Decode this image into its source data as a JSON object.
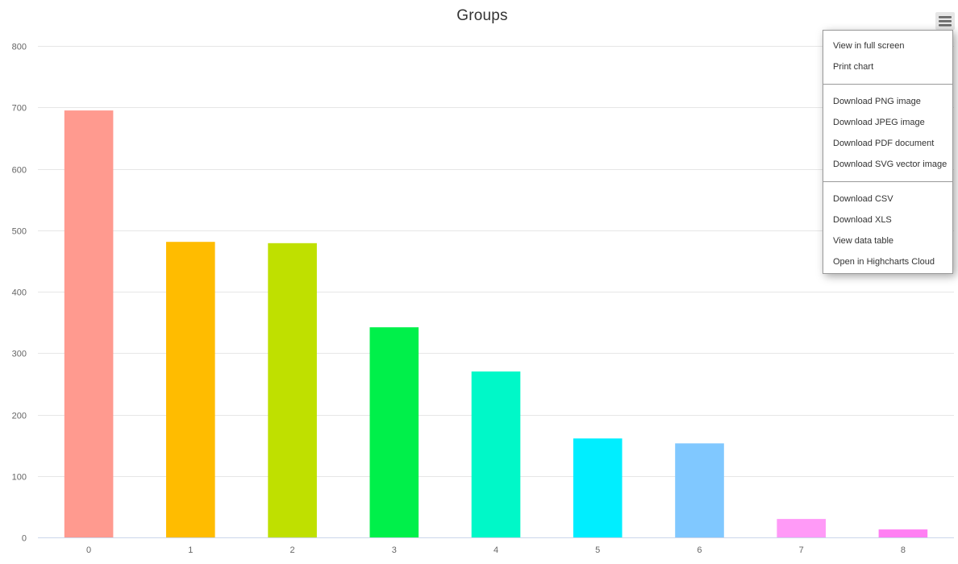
{
  "chart_data": {
    "type": "bar",
    "title": "Groups",
    "categories": [
      "0",
      "1",
      "2",
      "3",
      "4",
      "5",
      "6",
      "7",
      "8"
    ],
    "values": [
      695,
      481,
      479,
      342,
      270,
      161,
      153,
      30,
      13
    ],
    "colors": [
      "#ff9a8f",
      "#ffbc00",
      "#bfe000",
      "#00f04a",
      "#00f8c8",
      "#00eeff",
      "#80c8ff",
      "#ff9af7",
      "#ff7ff3"
    ],
    "ylim": [
      0,
      800
    ],
    "yticks": [
      0,
      100,
      200,
      300,
      400,
      500,
      600,
      700,
      800
    ],
    "xlabel": "",
    "ylabel": "",
    "grid": true,
    "legend": "none"
  },
  "export_menu": {
    "button_icon": "hamburger-menu-icon",
    "groups": [
      [
        "View in full screen",
        "Print chart"
      ],
      [
        "Download PNG image",
        "Download JPEG image",
        "Download PDF document",
        "Download SVG vector image"
      ],
      [
        "Download CSV",
        "Download XLS",
        "View data table",
        "Open in Highcharts Cloud"
      ]
    ]
  }
}
